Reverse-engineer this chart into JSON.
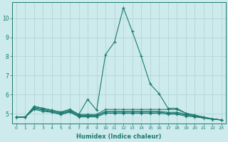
{
  "xlabel": "Humidex (Indice chaleur)",
  "background_color": "#cdeaec",
  "grid_color": "#b8d8da",
  "line_color": "#1a7a6e",
  "xlim": [
    -0.5,
    23.5
  ],
  "ylim": [
    4.5,
    10.85
  ],
  "yticks": [
    5,
    6,
    7,
    8,
    9,
    10
  ],
  "xticks": [
    0,
    1,
    2,
    3,
    4,
    5,
    6,
    7,
    8,
    9,
    10,
    11,
    12,
    13,
    14,
    15,
    16,
    17,
    18,
    19,
    20,
    21,
    22,
    23
  ],
  "series": [
    [
      4.82,
      4.82,
      5.38,
      5.28,
      5.18,
      5.08,
      5.22,
      4.96,
      5.75,
      5.18,
      8.1,
      8.75,
      10.55,
      9.3,
      8.0,
      6.55,
      6.05,
      5.28,
      5.28,
      5.02,
      4.92,
      4.82,
      4.72,
      4.67
    ],
    [
      4.82,
      4.82,
      5.38,
      5.28,
      5.18,
      5.08,
      5.22,
      4.96,
      4.96,
      4.96,
      5.22,
      5.22,
      5.22,
      5.22,
      5.22,
      5.22,
      5.22,
      5.22,
      5.22,
      5.02,
      4.92,
      4.82,
      4.72,
      4.67
    ],
    [
      4.82,
      4.82,
      5.32,
      5.22,
      5.12,
      5.02,
      5.16,
      4.91,
      4.91,
      4.91,
      5.12,
      5.12,
      5.12,
      5.12,
      5.12,
      5.12,
      5.12,
      5.07,
      5.07,
      4.97,
      4.87,
      4.77,
      4.72,
      4.67
    ],
    [
      4.82,
      4.82,
      5.28,
      5.18,
      5.08,
      4.98,
      5.12,
      4.88,
      4.88,
      4.88,
      5.08,
      5.08,
      5.08,
      5.08,
      5.08,
      5.08,
      5.08,
      5.02,
      5.02,
      4.92,
      4.88,
      4.77,
      4.72,
      4.67
    ],
    [
      4.82,
      4.82,
      5.22,
      5.12,
      5.07,
      4.95,
      5.08,
      4.83,
      4.83,
      4.83,
      5.02,
      5.02,
      5.02,
      5.02,
      5.02,
      5.02,
      5.02,
      4.97,
      4.97,
      4.87,
      4.83,
      4.77,
      4.72,
      4.67
    ]
  ]
}
